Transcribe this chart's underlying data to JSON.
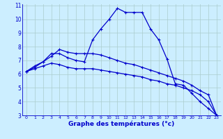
{
  "xlabel": "Graphe des températures (°c)",
  "background_color": "#cceeff",
  "grid_color": "#aacccc",
  "line_color": "#0000cc",
  "x": [
    0,
    1,
    2,
    3,
    4,
    5,
    6,
    7,
    8,
    9,
    10,
    11,
    12,
    13,
    14,
    15,
    16,
    17,
    18,
    19,
    20,
    21,
    22,
    23
  ],
  "curve1": [
    6.2,
    6.6,
    6.9,
    7.5,
    7.5,
    7.2,
    7.0,
    6.9,
    8.5,
    9.3,
    10.0,
    10.8,
    10.5,
    10.5,
    10.5,
    9.3,
    8.5,
    7.1,
    5.3,
    5.2,
    4.6,
    4.0,
    3.5,
    3.0
  ],
  "curve2": [
    6.2,
    6.5,
    6.9,
    7.3,
    7.8,
    7.6,
    7.5,
    7.5,
    7.5,
    7.4,
    7.2,
    7.0,
    6.8,
    6.7,
    6.5,
    6.3,
    6.1,
    5.9,
    5.7,
    5.5,
    5.2,
    4.8,
    4.5,
    3.0
  ],
  "curve3": [
    6.2,
    6.4,
    6.6,
    6.8,
    6.7,
    6.5,
    6.4,
    6.4,
    6.4,
    6.3,
    6.2,
    6.1,
    6.0,
    5.9,
    5.8,
    5.6,
    5.5,
    5.3,
    5.2,
    5.0,
    4.8,
    4.5,
    4.0,
    3.0
  ],
  "ylim": [
    3,
    11
  ],
  "xlim": [
    -0.5,
    23.5
  ],
  "yticks": [
    3,
    4,
    5,
    6,
    7,
    8,
    9,
    10,
    11
  ],
  "xticks": [
    0,
    1,
    2,
    3,
    4,
    5,
    6,
    7,
    8,
    9,
    10,
    11,
    12,
    13,
    14,
    15,
    16,
    17,
    18,
    19,
    20,
    21,
    22,
    23
  ],
  "xlabel_fontsize": 6.5,
  "tick_fontsize_x": 4.5,
  "tick_fontsize_y": 5.5
}
